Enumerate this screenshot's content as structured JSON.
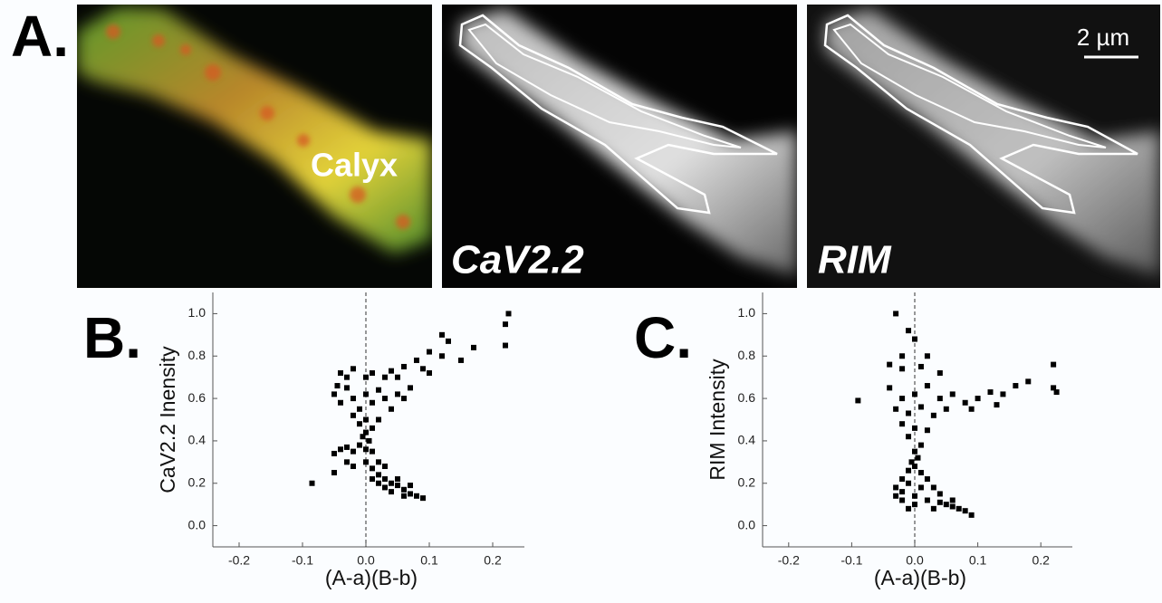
{
  "panels": {
    "a": "A.",
    "b": "B.",
    "c": "C."
  },
  "images": [
    {
      "label": "Calyx"
    },
    {
      "label": "CaV2.2"
    },
    {
      "label": "RIM"
    }
  ],
  "scale_bar": "2 µm",
  "chart_data": [
    {
      "type": "scatter",
      "y_label": "CaV2.2 Inensity",
      "x_label": "(A-a)(B-b)",
      "xlim": [
        -0.25,
        0.25
      ],
      "xticks": [
        -0.2,
        -0.1,
        {
          "value": 0,
          "label": "0.0"
        },
        0.1,
        0.2
      ],
      "ylim": [
        -0.1,
        1.1
      ],
      "yticks": [
        {
          "value": 0,
          "label": "0.0"
        },
        0.2,
        0.4,
        0.6,
        0.8,
        {
          "value": 1,
          "label": "1.0"
        }
      ],
      "reference_line_x": 0,
      "series": [
        {
          "color": "#000000",
          "x": [
            -0.04,
            -0.03,
            -0.02,
            0,
            0.01,
            0.03,
            0.04,
            -0.05,
            -0.04,
            -0.03,
            -0.02,
            -0.01,
            0,
            0.01,
            0.02,
            0.03,
            0.04,
            0.05,
            -0.02,
            0.02,
            -0.01,
            0.01,
            0,
            -0.005,
            0.005,
            0,
            0.06,
            0.07,
            0.05,
            -0.045,
            0.06,
            0.08,
            0.1,
            0.12,
            0.13,
            0.15,
            0.17,
            0.12,
            0.09,
            0.22,
            0.225,
            0.22,
            0.1,
            -0.01,
            0,
            0.01,
            -0.02,
            -0.03,
            -0.04,
            -0.05,
            -0.03,
            -0.02,
            0,
            0.01,
            0.02,
            0.03,
            0.02,
            0.03,
            0.04,
            0.05,
            0.06,
            0.07,
            0.08,
            0.09,
            0.06,
            0.04,
            0.05,
            0.01,
            0.02,
            -0.05,
            -0.085,
            0.03,
            0.07
          ],
          "y": [
            0.72,
            0.7,
            0.74,
            0.7,
            0.72,
            0.7,
            0.73,
            0.62,
            0.58,
            0.65,
            0.6,
            0.55,
            0.62,
            0.58,
            0.64,
            0.6,
            0.55,
            0.62,
            0.52,
            0.5,
            0.48,
            0.46,
            0.44,
            0.42,
            0.4,
            0.5,
            0.6,
            0.65,
            0.7,
            0.66,
            0.75,
            0.78,
            0.82,
            0.8,
            0.87,
            0.78,
            0.84,
            0.9,
            0.74,
            0.95,
            1.0,
            0.85,
            0.72,
            0.38,
            0.36,
            0.35,
            0.35,
            0.37,
            0.36,
            0.34,
            0.3,
            0.28,
            0.3,
            0.27,
            0.3,
            0.28,
            0.24,
            0.22,
            0.2,
            0.19,
            0.17,
            0.15,
            0.14,
            0.13,
            0.14,
            0.16,
            0.22,
            0.22,
            0.2,
            0.25,
            0.2,
            0.18,
            0.19
          ]
        }
      ]
    },
    {
      "type": "scatter",
      "y_label": "RIM Intensity",
      "x_label": "(A-a)(B-b)",
      "xlim": [
        -0.25,
        0.25
      ],
      "xticks": [
        -0.2,
        -0.1,
        {
          "value": 0,
          "label": "0.0"
        },
        0.1,
        0.2
      ],
      "ylim": [
        -0.1,
        1.1
      ],
      "yticks": [
        {
          "value": 0,
          "label": "0.0"
        },
        0.2,
        0.4,
        0.6,
        0.8,
        {
          "value": 1,
          "label": "1.0"
        }
      ],
      "reference_line_x": 0,
      "series": [
        {
          "color": "#000000",
          "x": [
            -0.03,
            -0.01,
            0,
            -0.02,
            0.02,
            -0.04,
            -0.02,
            0.01,
            0.04,
            -0.09,
            -0.04,
            -0.02,
            0,
            0.02,
            0.04,
            -0.03,
            -0.01,
            0.01,
            0.03,
            0.05,
            0.06,
            0.08,
            -0.02,
            0,
            0.02,
            -0.01,
            0.01,
            0,
            0.005,
            -0.005,
            0.1,
            0.12,
            0.14,
            0.16,
            0.18,
            0.22,
            0.22,
            0.225,
            0.13,
            0.09,
            -0.01,
            0,
            0.01,
            -0.02,
            0.02,
            -0.03,
            -0.01,
            0.01,
            0.03,
            0.04,
            -0.03,
            -0.02,
            0,
            0.02,
            0.04,
            0.05,
            0.06,
            0.07,
            0.08,
            0.09,
            0.06,
            0,
            -0.01,
            0.03,
            -0.02
          ],
          "y": [
            1.0,
            0.92,
            0.88,
            0.8,
            0.8,
            0.76,
            0.74,
            0.75,
            0.72,
            0.59,
            0.65,
            0.6,
            0.62,
            0.66,
            0.6,
            0.55,
            0.53,
            0.56,
            0.52,
            0.55,
            0.62,
            0.58,
            0.48,
            0.46,
            0.45,
            0.42,
            0.38,
            0.35,
            0.32,
            0.3,
            0.6,
            0.63,
            0.62,
            0.66,
            0.68,
            0.76,
            0.65,
            0.63,
            0.57,
            0.55,
            0.26,
            0.28,
            0.25,
            0.22,
            0.22,
            0.18,
            0.2,
            0.18,
            0.18,
            0.15,
            0.14,
            0.12,
            0.14,
            0.12,
            0.11,
            0.1,
            0.09,
            0.08,
            0.07,
            0.05,
            0.12,
            0.1,
            0.08,
            0.08,
            0.16
          ]
        }
      ]
    }
  ]
}
